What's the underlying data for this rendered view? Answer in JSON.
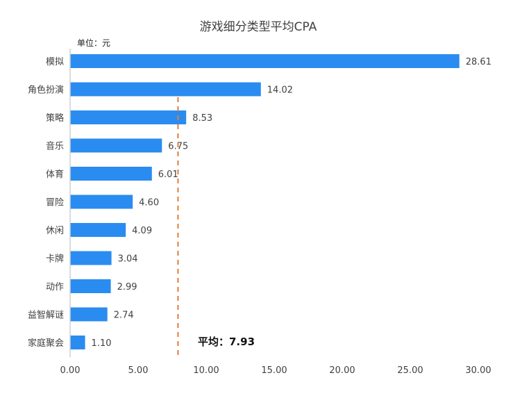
{
  "chart_data": {
    "type": "bar",
    "orientation": "horizontal",
    "title": "游戏细分类型平均CPA",
    "unit_label": "单位：元",
    "categories": [
      "模拟",
      "角色扮演",
      "策略",
      "音乐",
      "体育",
      "冒险",
      "休闲",
      "卡牌",
      "动作",
      "益智解谜",
      "家庭聚会"
    ],
    "values": [
      28.61,
      14.02,
      8.53,
      6.75,
      6.01,
      4.6,
      4.09,
      3.04,
      2.99,
      2.74,
      1.1
    ],
    "value_labels": [
      "28.61",
      "14.02",
      "8.53",
      "6.75",
      "6.01",
      "4.60",
      "4.09",
      "3.04",
      "2.99",
      "2.74",
      "1.10"
    ],
    "xlim": [
      0,
      30
    ],
    "xticks": [
      0,
      5,
      10,
      15,
      20,
      25,
      30
    ],
    "xtick_labels": [
      "0.00",
      "5.00",
      "10.00",
      "15.00",
      "20.00",
      "25.00",
      "30.00"
    ],
    "average": 7.93,
    "average_label": "平均：7.93",
    "grid": false,
    "colors": {
      "bar": "#2A8CF0",
      "average_line": "#E07B39",
      "axis": "#D0D0D0",
      "text": "#404040"
    }
  }
}
